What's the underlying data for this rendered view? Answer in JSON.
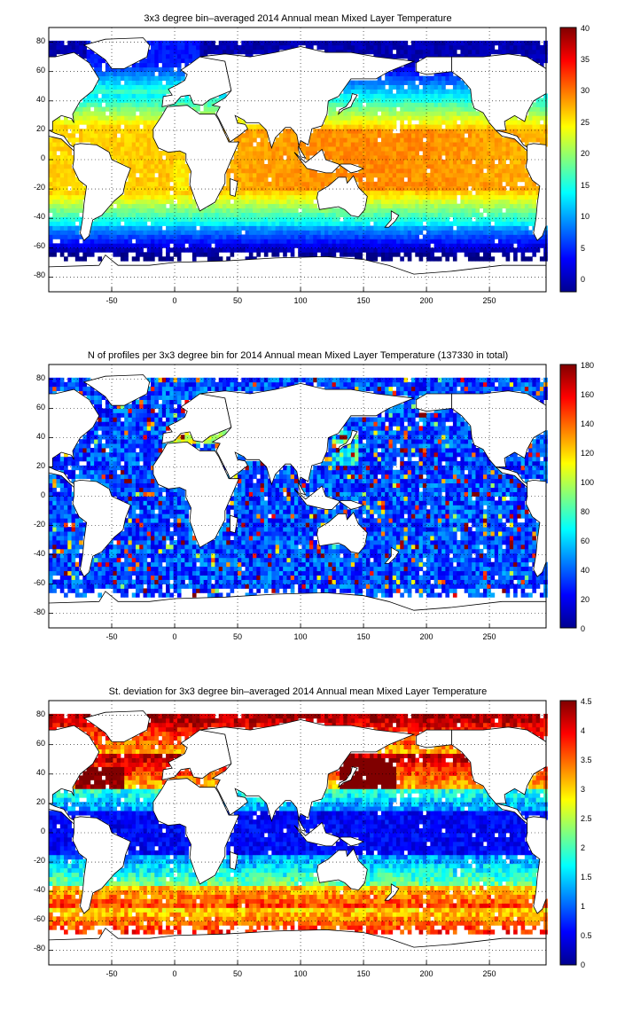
{
  "panels": [
    {
      "title": "3x3 degree bin–averaged 2014 Annual mean Mixed Layer Temperature",
      "x_ticks": [
        "-50",
        "0",
        "50",
        "100",
        "150",
        "200",
        "250"
      ],
      "y_ticks": [
        "80",
        "60",
        "40",
        "20",
        "0",
        "-20",
        "-40",
        "-60",
        "-80"
      ],
      "colorbar_ticks": [
        "40",
        "35",
        "30",
        "25",
        "20",
        "15",
        "10",
        "5",
        "0"
      ]
    },
    {
      "title": "N of profiles per 3x3 degree bin for 2014 Annual mean Mixed Layer Temperature  (137330 in total)",
      "x_ticks": [
        "-50",
        "0",
        "50",
        "100",
        "150",
        "200",
        "250"
      ],
      "y_ticks": [
        "80",
        "60",
        "40",
        "20",
        "0",
        "-20",
        "-40",
        "-60",
        "-80"
      ],
      "colorbar_ticks": [
        "180",
        "160",
        "140",
        "120",
        "100",
        "80",
        "60",
        "40",
        "20",
        "0"
      ]
    },
    {
      "title": "St. deviation for 3x3 degree bin–averaged 2014 Annual mean Mixed Layer Temperature",
      "x_ticks": [
        "-50",
        "0",
        "50",
        "100",
        "150",
        "200",
        "250"
      ],
      "y_ticks": [
        "80",
        "60",
        "40",
        "20",
        "0",
        "-20",
        "-40",
        "-60",
        "-80"
      ],
      "colorbar_ticks": [
        "4.5",
        "4",
        "3.5",
        "3",
        "2.5",
        "2",
        "1.5",
        "1",
        "0.5",
        "0"
      ]
    }
  ],
  "chart_data": [
    {
      "type": "heatmap",
      "title": "3x3 degree bin–averaged 2014 Annual mean Mixed Layer Temperature",
      "xlim": [
        -100,
        295
      ],
      "ylim": [
        -90,
        90
      ],
      "xticks": [
        -50,
        0,
        50,
        100,
        150,
        200,
        250
      ],
      "yticks": [
        -80,
        -60,
        -40,
        -20,
        0,
        20,
        40,
        60,
        80
      ],
      "grid": true,
      "colormap": "jet",
      "clim": [
        -2,
        40
      ],
      "colorbar_ticks": [
        0,
        5,
        10,
        15,
        20,
        25,
        30,
        35,
        40
      ],
      "bin_size_degrees": 3,
      "field": "mixed layer temperature"
    },
    {
      "type": "heatmap",
      "title": "N of profiles per 3x3 degree bin for 2014 Annual mean Mixed Layer Temperature  (137330 in total)",
      "xlim": [
        -100,
        295
      ],
      "ylim": [
        -90,
        90
      ],
      "xticks": [
        -50,
        0,
        50,
        100,
        150,
        200,
        250
      ],
      "yticks": [
        -80,
        -60,
        -40,
        -20,
        0,
        20,
        40,
        60,
        80
      ],
      "grid": true,
      "colormap": "jet",
      "clim": [
        0,
        180
      ],
      "colorbar_ticks": [
        0,
        20,
        40,
        60,
        80,
        100,
        120,
        140,
        160,
        180
      ],
      "bin_size_degrees": 3,
      "total_profiles": 137330,
      "field": "number of profiles"
    },
    {
      "type": "heatmap",
      "title": "St. deviation for 3x3 degree bin–averaged 2014 Annual mean Mixed Layer Temperature",
      "xlim": [
        -100,
        295
      ],
      "ylim": [
        -90,
        90
      ],
      "xticks": [
        -50,
        0,
        50,
        100,
        150,
        200,
        250
      ],
      "yticks": [
        -80,
        -60,
        -40,
        -20,
        0,
        20,
        40,
        60,
        80
      ],
      "grid": true,
      "colormap": "jet",
      "clim": [
        0,
        4.5
      ],
      "colorbar_ticks": [
        0,
        0.5,
        1,
        1.5,
        2,
        2.5,
        3,
        3.5,
        4,
        4.5
      ],
      "bin_size_degrees": 3,
      "field": "standard deviation"
    }
  ]
}
